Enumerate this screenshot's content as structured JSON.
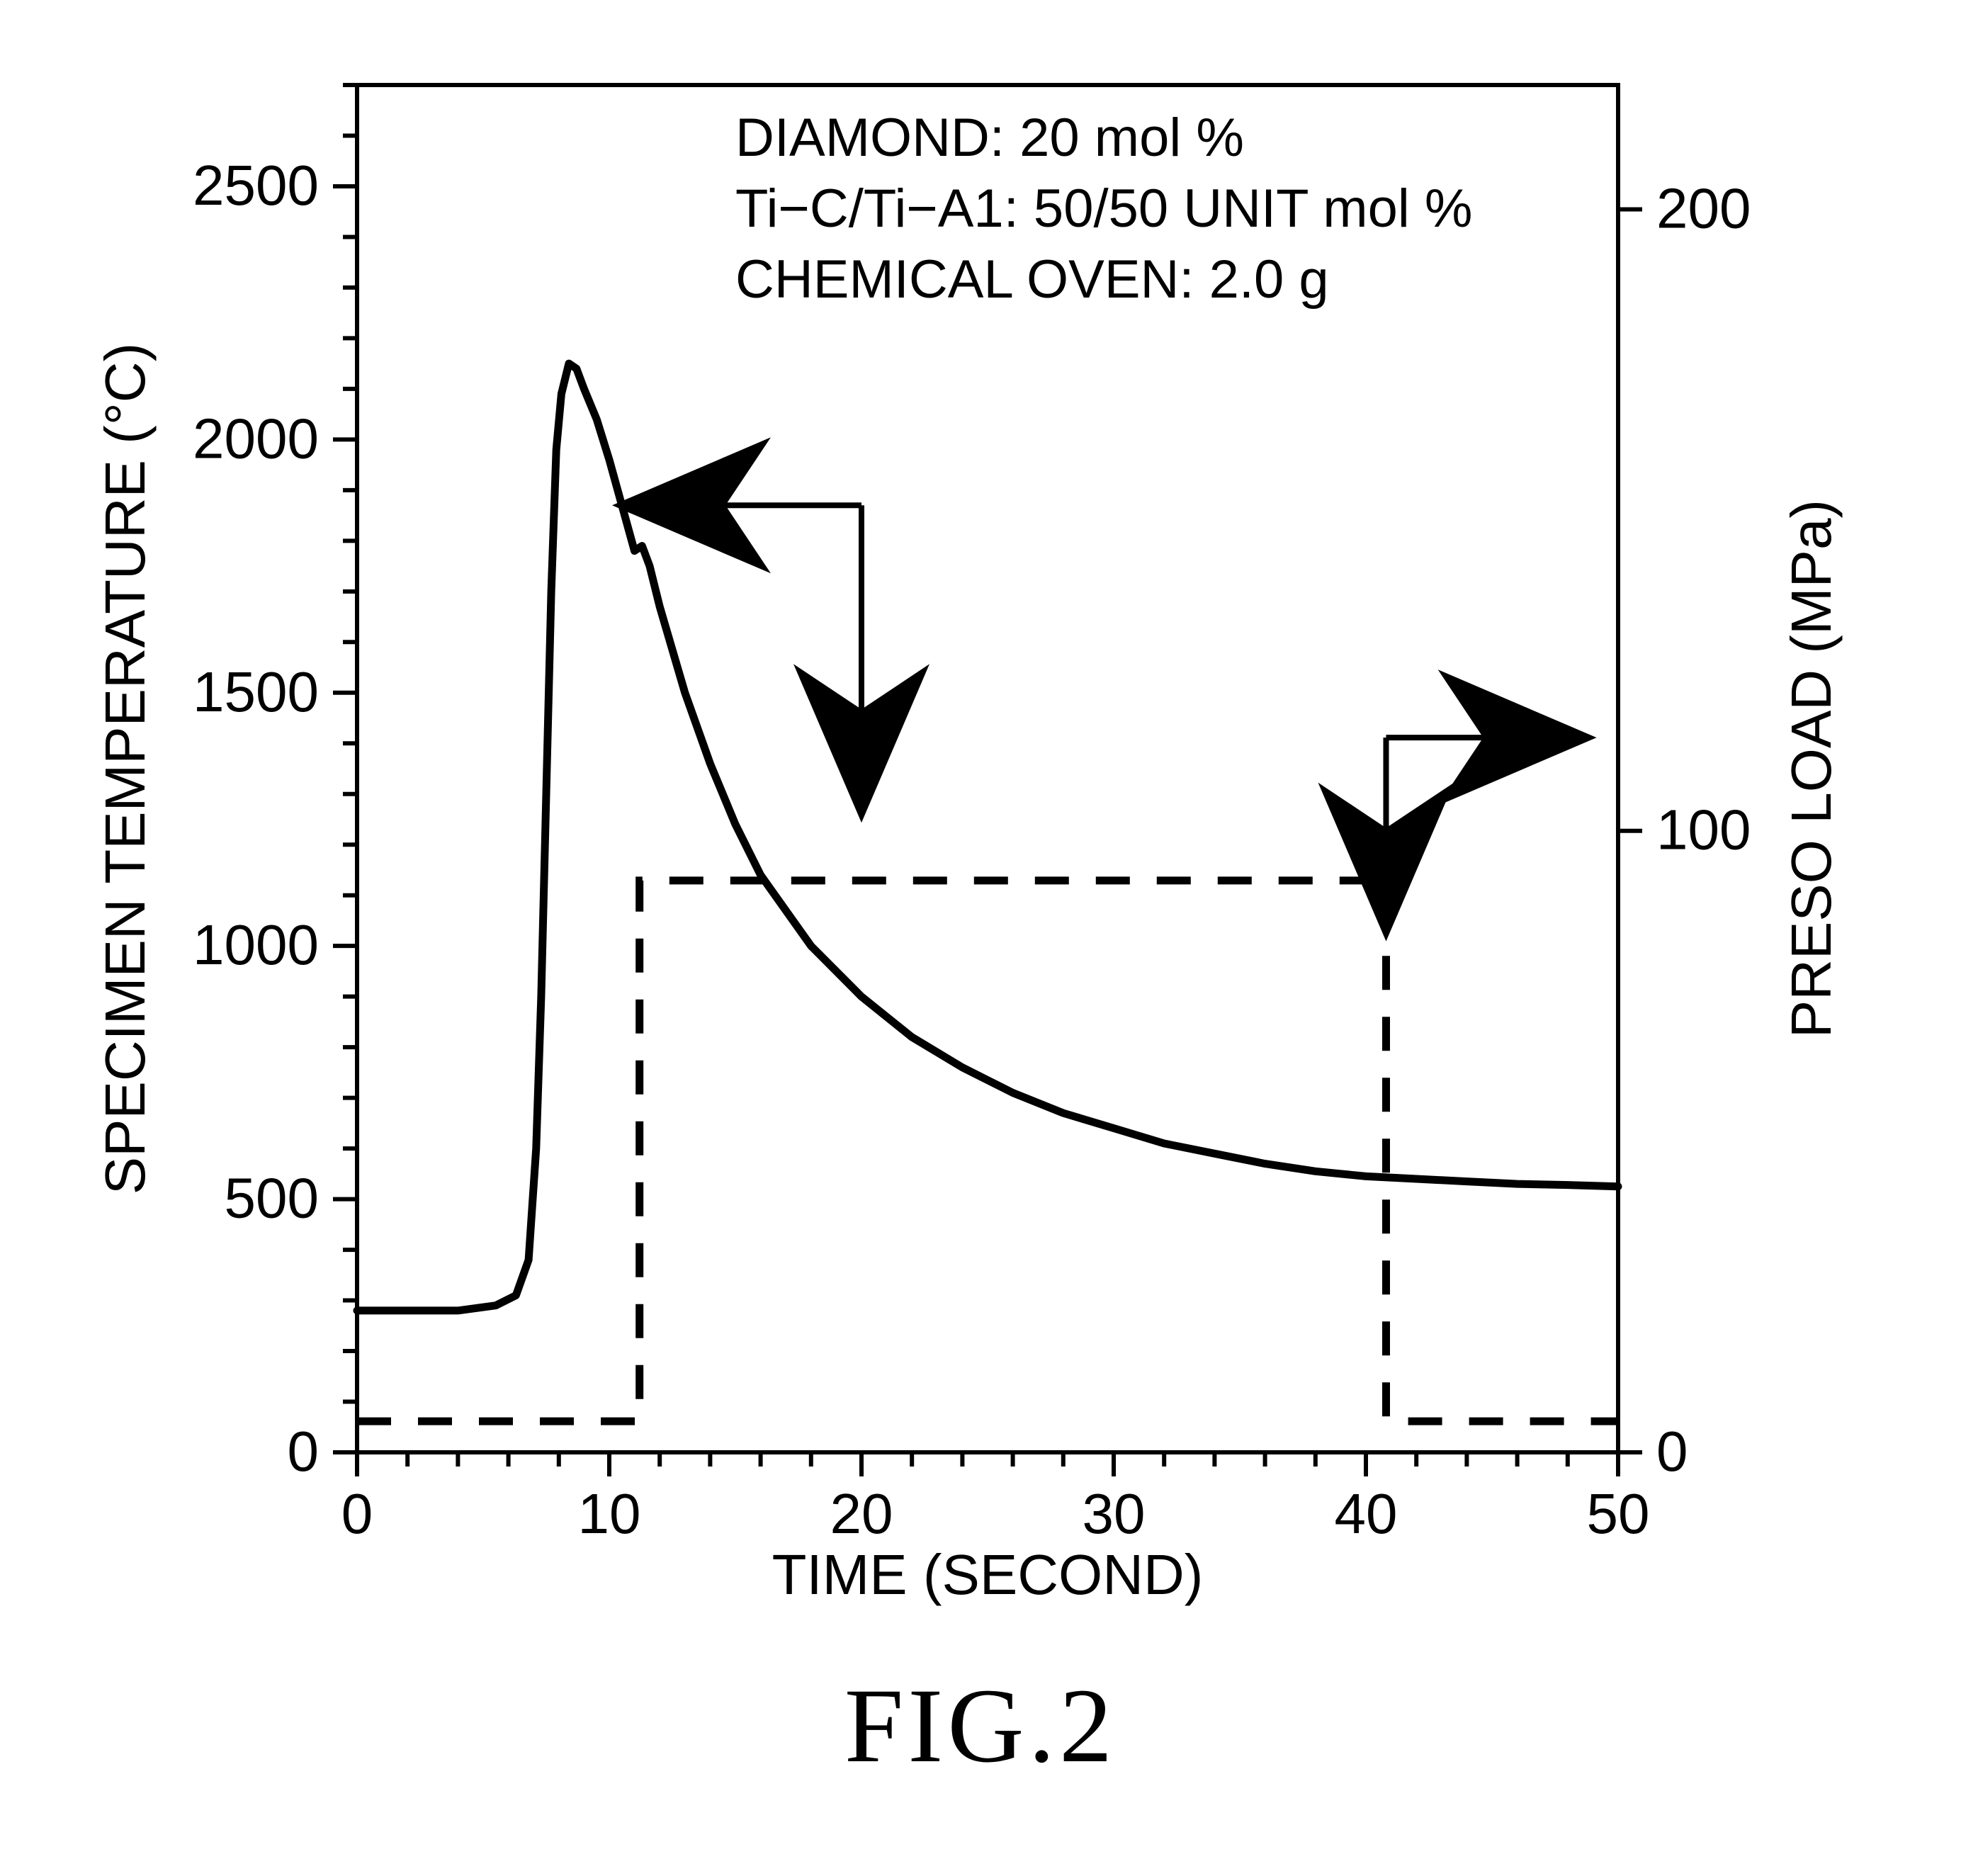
{
  "figure": {
    "caption": "FIG.2",
    "caption_fontsize_pt": 110,
    "chart": {
      "type": "line",
      "plot_background": "#ffffff",
      "axis_color": "#000000",
      "axis_line_width": 6,
      "tick_line_width": 6,
      "tick_length_major": 34,
      "tick_length_minor": 20,
      "tick_fontsize_pt": 60,
      "axis_label_fontsize_pt": 60,
      "annotation_fontsize_pt": 60,
      "x": {
        "label": "TIME (SECOND)",
        "min": 0,
        "max": 50,
        "ticks": [
          0,
          10,
          20,
          30,
          40,
          50
        ],
        "minor_step": 2
      },
      "y_left": {
        "label": "SPECIMEN TEMPERATURE (°C)",
        "min": 0,
        "max": 2700,
        "ticks": [
          0,
          500,
          1000,
          1500,
          2000,
          2500
        ],
        "minor_step": 100
      },
      "y_right": {
        "label": "PRESO LOAD (MPa)",
        "min": 0,
        "max": 220,
        "ticks": [
          0,
          100,
          200
        ]
      },
      "annotations": [
        "DIAMOND:   20 mol %",
        "Ti−C/Ti−A1:   50/50 UNIT mol %",
        "CHEMICAL OVEN:  2.0 g"
      ],
      "series": {
        "temperature": {
          "name": "Specimen Temperature",
          "axis": "left",
          "color": "#000000",
          "line_width": 11,
          "dash": "solid",
          "points": [
            [
              0,
              280
            ],
            [
              2,
              280
            ],
            [
              4,
              280
            ],
            [
              5.5,
              290
            ],
            [
              6.3,
              310
            ],
            [
              6.8,
              380
            ],
            [
              7.1,
              600
            ],
            [
              7.3,
              900
            ],
            [
              7.5,
              1300
            ],
            [
              7.7,
              1700
            ],
            [
              7.9,
              1980
            ],
            [
              8.1,
              2090
            ],
            [
              8.4,
              2150
            ],
            [
              8.7,
              2140
            ],
            [
              9.0,
              2100
            ],
            [
              9.5,
              2040
            ],
            [
              10.0,
              1960
            ],
            [
              10.5,
              1870
            ],
            [
              11.0,
              1780
            ],
            [
              11.3,
              1790
            ],
            [
              11.6,
              1750
            ],
            [
              12.0,
              1670
            ],
            [
              13.0,
              1500
            ],
            [
              14.0,
              1360
            ],
            [
              15.0,
              1240
            ],
            [
              16.0,
              1140
            ],
            [
              18.0,
              1000
            ],
            [
              20.0,
              900
            ],
            [
              22.0,
              820
            ],
            [
              24.0,
              760
            ],
            [
              26.0,
              710
            ],
            [
              28.0,
              670
            ],
            [
              30.0,
              640
            ],
            [
              32.0,
              610
            ],
            [
              34.0,
              590
            ],
            [
              36.0,
              570
            ],
            [
              38.0,
              555
            ],
            [
              40.0,
              545
            ],
            [
              42.0,
              540
            ],
            [
              44.0,
              535
            ],
            [
              46.0,
              530
            ],
            [
              48.0,
              528
            ],
            [
              50.0,
              525
            ]
          ]
        },
        "press_load": {
          "name": "Press Load",
          "axis": "right",
          "color": "#000000",
          "line_width": 11,
          "dash": "dashed",
          "dash_pattern": "48 38",
          "points": [
            [
              0,
              5
            ],
            [
              11.2,
              5
            ],
            [
              11.2,
              92
            ],
            [
              40.8,
              92
            ],
            [
              40.8,
              5
            ],
            [
              50,
              5
            ]
          ]
        }
      },
      "indicator_arrows": {
        "temperature_arrow": {
          "x": 20,
          "y_from": 1870,
          "y_to": 1400,
          "axis": "left"
        },
        "load_arrow": {
          "x_from": 40.8,
          "x_to": 46,
          "y": 115,
          "axis": "right",
          "then_down_to": 95
        }
      }
    }
  }
}
